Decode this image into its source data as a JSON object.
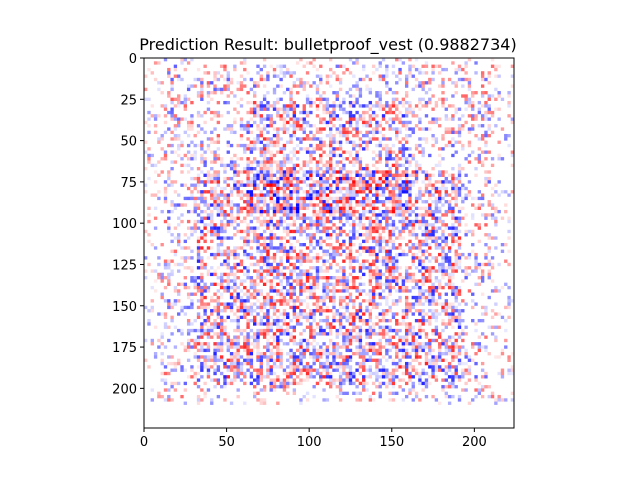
{
  "chart_data": {
    "type": "heatmap",
    "title": "Prediction Result: bulletproof_vest (0.9882734)",
    "xlabel": "",
    "ylabel": "",
    "colormap": "bwr",
    "colors": {
      "negative": "#0000ff",
      "zero": "#ffffff",
      "positive": "#ff0000"
    },
    "image_size": [
      224,
      224
    ],
    "xlim": [
      0,
      224
    ],
    "ylim": [
      224,
      0
    ],
    "x_ticks": [
      0,
      50,
      100,
      150,
      200
    ],
    "y_ticks": [
      0,
      25,
      50,
      75,
      100,
      125,
      150,
      175,
      200
    ],
    "grid": false
  }
}
